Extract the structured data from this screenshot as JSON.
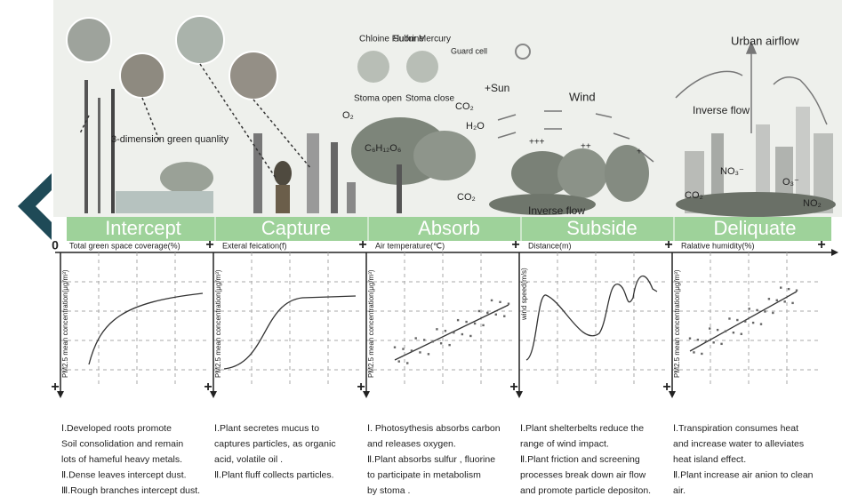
{
  "origin": "0",
  "plus": "+",
  "illustration": {
    "labels": [
      "3-dimension green quanlity",
      "Chloine Fluorine",
      "Sulfur Mercury",
      "Guard cell",
      "Stoma open",
      "Stoma close",
      "+Sun",
      "O₂",
      "CO₂",
      "H₂O",
      "C₆H₁₂O₆",
      "CO₂",
      "Wind",
      "+++",
      "++",
      "+",
      "Inverse flow",
      "Urban airflow",
      "Inverse flow",
      "NO₃⁻",
      "O₃⁻",
      "CO₂",
      "NO₂"
    ]
  },
  "stages": [
    {
      "name": "Intercept",
      "x_axis": "Total green space coverage(%)",
      "y_axis": "PM2.5 mean concentration(μg/m³)",
      "description": [
        "Ⅰ.Developed roots promote",
        "Soil consolidation and remain",
        "lots of hameful heavy metals.",
        "Ⅱ.Dense  leaves intercept dust.",
        "Ⅲ.Rough branches intercept dust."
      ]
    },
    {
      "name": "Capture",
      "x_axis": "Exteral feication(f)",
      "y_axis": "PM2.5 mean concentration(μg/m³)",
      "description": [
        "Ⅰ.Plant secretes mucus to",
        "captures particles, as organic",
        "acid,   volatile oil .",
        "Ⅱ.Plant fluff collects particles."
      ]
    },
    {
      "name": "Absorb",
      "x_axis": "Air temperature(℃)",
      "y_axis": "PM2.5 mean concentration(μg/m³)",
      "description": [
        "Ⅰ. Photosythesis absorbs carbon",
        "and releases oxygen.",
        "Ⅱ.Plant absorbs sulfur ,  fluorine",
        "to participate in metabolism",
        "by stoma ."
      ]
    },
    {
      "name": "Subside",
      "x_axis": "Distance(m)",
      "y_axis": "wind speed(m/s)",
      "description": [
        "Ⅰ.Plant shelterbelts reduce the",
        "range of wind impact.",
        "Ⅱ.Plant friction and screening",
        "processes break down air flow",
        "and promote particle depositon."
      ]
    },
    {
      "name": "Deliquate",
      "x_axis": "Ralative humidity(%)",
      "y_axis": "PM2.5 mean concentration(μg/m³)",
      "description": [
        "Ⅰ.Transpiration consumes heat",
        "and increase water to alleviates",
        "heat island effect.",
        "Ⅱ.Plant increase air anion to clean",
        "air."
      ]
    }
  ]
}
